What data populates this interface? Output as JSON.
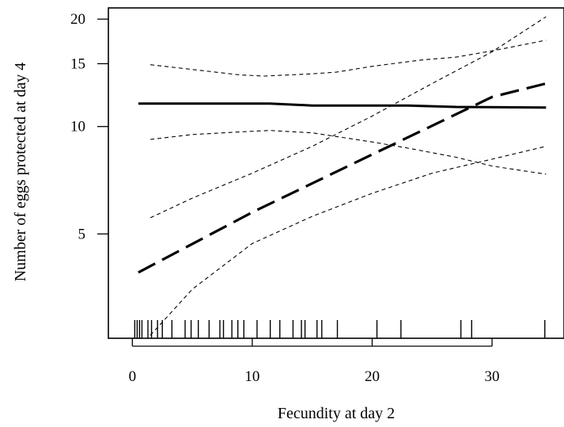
{
  "chart_data": {
    "type": "line",
    "title": "",
    "xlabel": "Fecundity at day 2",
    "ylabel": "Number of eggs protected at day 4",
    "xlim": [
      -2,
      36
    ],
    "ylim": [
      2.55,
      21.5
    ],
    "y_scale": "log",
    "x_ticks": [
      0,
      10,
      20,
      30
    ],
    "y_ticks": [
      5,
      10,
      15,
      20
    ],
    "grid": false,
    "legend": "none",
    "series": [
      {
        "style": "solid-thick",
        "x": [
          0.5,
          5,
          10,
          11.5,
          15,
          20,
          23,
          27,
          34.5
        ],
        "y": [
          11.6,
          11.6,
          11.6,
          11.6,
          11.45,
          11.45,
          11.45,
          11.35,
          11.3
        ]
      },
      {
        "style": "dashed-fine",
        "x": [
          1.5,
          5,
          9,
          11,
          15,
          17,
          20,
          24,
          27,
          30,
          34.5
        ],
        "y": [
          14.9,
          14.45,
          13.95,
          13.85,
          14.05,
          14.2,
          14.75,
          15.35,
          15.65,
          16.3,
          17.45
        ]
      },
      {
        "style": "dashed-fine",
        "x": [
          1.5,
          5,
          10,
          11.5,
          15,
          20,
          23,
          27,
          30,
          34.5
        ],
        "y": [
          9.2,
          9.5,
          9.7,
          9.75,
          9.6,
          9.05,
          8.7,
          8.2,
          7.75,
          7.35
        ]
      },
      {
        "style": "dashed-long",
        "x": [
          0.5,
          10,
          20,
          30,
          34.5
        ],
        "y": [
          3.9,
          5.75,
          8.35,
          12.1,
          13.2
        ]
      },
      {
        "style": "dashed-fine",
        "x": [
          1.5,
          5,
          10,
          15,
          20,
          25,
          30,
          34.5
        ],
        "y": [
          5.55,
          6.3,
          7.4,
          8.8,
          10.7,
          13.2,
          16.2,
          20.3
        ]
      },
      {
        "style": "dashed-fine",
        "x": [
          1.5,
          5,
          10,
          15,
          20,
          25,
          30,
          34.5
        ],
        "y": [
          2.6,
          3.5,
          4.7,
          5.6,
          6.5,
          7.4,
          8.1,
          8.8
        ]
      }
    ],
    "rug_x": [
      0.2,
      0.4,
      0.6,
      0.8,
      1.3,
      1.6,
      2.1,
      2.5,
      3.3,
      4.4,
      4.9,
      5.5,
      6.4,
      7.3,
      7.6,
      8.3,
      8.8,
      9.3,
      10.4,
      11.5,
      12.3,
      13.4,
      14.1,
      14.4,
      15.4,
      15.8,
      17.1,
      20.4,
      22.4,
      27.4,
      28.3,
      34.4
    ]
  }
}
